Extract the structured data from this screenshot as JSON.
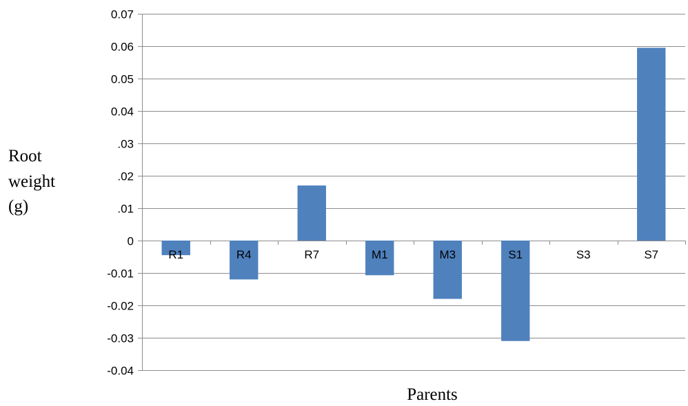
{
  "chart_data": {
    "type": "bar",
    "title": "",
    "xlabel": "Parents",
    "ylabel_lines": [
      "Root",
      "weight",
      "(g)"
    ],
    "categories": [
      "R1",
      "R4",
      "R7",
      "M1",
      "M3",
      "S1",
      "S3",
      "S7"
    ],
    "values": [
      -0.0045,
      -0.012,
      0.017,
      -0.0107,
      -0.018,
      -0.031,
      0,
      0.0595
    ],
    "ylim": [
      -0.04,
      0.07
    ],
    "yticks": [
      {
        "value": 0.07,
        "label": "0.07"
      },
      {
        "value": 0.06,
        "label": "0.06"
      },
      {
        "value": 0.05,
        "label": "0.05"
      },
      {
        "value": 0.04,
        "label": "0.04"
      },
      {
        "value": 0.03,
        "label": ".03"
      },
      {
        "value": 0.02,
        "label": ".02"
      },
      {
        "value": 0.01,
        "label": ".01"
      },
      {
        "value": 0,
        "label": "0"
      },
      {
        "value": -0.01,
        "label": "-0.01"
      },
      {
        "value": -0.02,
        "label": "-0.02"
      },
      {
        "value": -0.03,
        "label": "-0.03"
      },
      {
        "value": -0.04,
        "label": "-0.04"
      }
    ],
    "grid": true,
    "legend": "none",
    "bar_color": "#4f81bd",
    "grid_color": "#8c8c8c"
  }
}
